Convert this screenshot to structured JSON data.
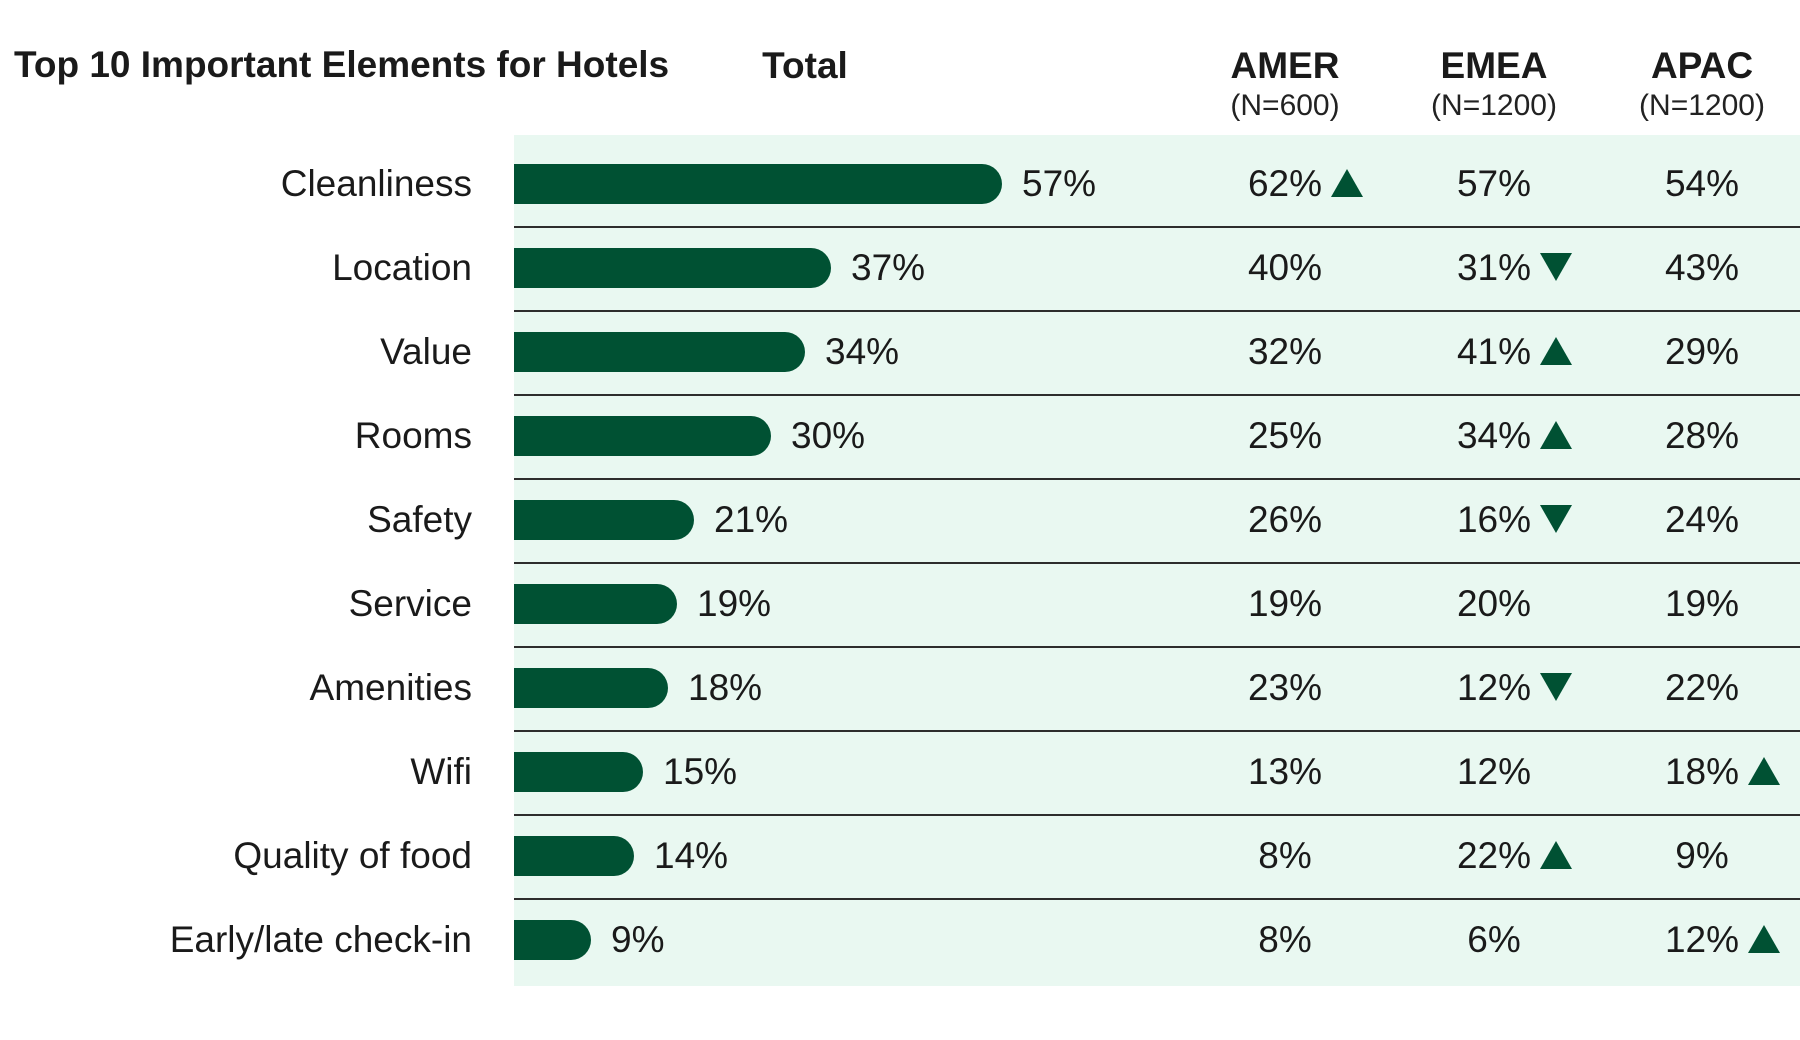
{
  "chart_data": {
    "type": "bar",
    "title": "Top 10 Important Elements for Hotels",
    "columns": [
      {
        "key": "total",
        "label": "Total",
        "n": ""
      },
      {
        "key": "amer",
        "label": "AMER",
        "n": "(N=600)"
      },
      {
        "key": "emea",
        "label": "EMEA",
        "n": "(N=1200)"
      },
      {
        "key": "apac",
        "label": "APAC",
        "n": "(N=1200)"
      }
    ],
    "categories": [
      "Cleanliness",
      "Location",
      "Value",
      "Rooms",
      "Safety",
      "Service",
      "Amenities",
      "Wifi",
      "Quality of food",
      "Early/late check-in"
    ],
    "series": [
      {
        "name": "Total",
        "values": [
          57,
          37,
          34,
          30,
          21,
          19,
          18,
          15,
          14,
          9
        ]
      },
      {
        "name": "AMER",
        "values": [
          62,
          40,
          32,
          25,
          26,
          19,
          23,
          13,
          8,
          8
        ]
      },
      {
        "name": "EMEA",
        "values": [
          57,
          31,
          41,
          34,
          16,
          20,
          12,
          12,
          22,
          6
        ]
      },
      {
        "name": "APAC",
        "values": [
          54,
          43,
          29,
          28,
          24,
          19,
          22,
          18,
          9,
          12
        ]
      }
    ],
    "indicators": {
      "AMER": [
        "up",
        "",
        "",
        "",
        "",
        "",
        "",
        "",
        "",
        ""
      ],
      "EMEA": [
        "",
        "down",
        "up",
        "up",
        "down",
        "",
        "down",
        "",
        "up",
        ""
      ],
      "APAC": [
        "",
        "",
        "",
        "",
        "",
        "",
        "",
        "up",
        "",
        "up"
      ]
    },
    "value_suffix": "%",
    "colors": {
      "bar": "#005133",
      "panel": "#e9f8f1",
      "arrow": "#005133",
      "separator": "#2d2d2d"
    }
  }
}
